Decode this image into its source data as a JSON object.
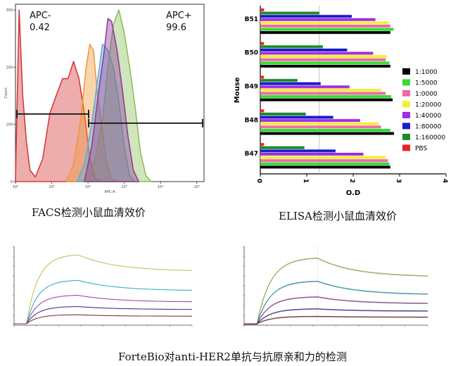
{
  "chart_data": [
    {
      "type": "area",
      "panel": "facs",
      "x_ticks": [
        "10⁰",
        "10¹",
        "10²",
        "10³",
        "10⁴",
        "10⁵"
      ],
      "y_ticks": [
        "0",
        "100",
        "200",
        "300"
      ],
      "xlabel": "APC-A",
      "ylabel": "Count",
      "ylim": [
        0,
        310
      ],
      "gates": [
        {
          "label": "APC-",
          "value": "0.42"
        },
        {
          "label": "APC+",
          "value": "99.6"
        }
      ],
      "series": [
        {
          "color": "#d43c3c",
          "values": [
            [
              0.0,
              2
            ],
            [
              0.1,
              300
            ],
            [
              0.2,
              150
            ],
            [
              0.3,
              70
            ],
            [
              0.4,
              20
            ],
            [
              0.55,
              8
            ],
            [
              0.75,
              40
            ],
            [
              0.95,
              120
            ],
            [
              1.15,
              155
            ],
            [
              1.3,
              180
            ],
            [
              1.45,
              180
            ],
            [
              1.6,
              210
            ],
            [
              1.75,
              180
            ],
            [
              1.9,
              120
            ],
            [
              2.05,
              40
            ],
            [
              2.2,
              5
            ],
            [
              2.4,
              0
            ]
          ]
        },
        {
          "color": "#ee9a3c",
          "values": [
            [
              1.4,
              0
            ],
            [
              1.6,
              30
            ],
            [
              1.8,
              110
            ],
            [
              1.95,
              200
            ],
            [
              2.05,
              240
            ],
            [
              2.15,
              230
            ],
            [
              2.25,
              160
            ],
            [
              2.35,
              110
            ],
            [
              2.5,
              40
            ],
            [
              2.65,
              5
            ],
            [
              2.8,
              0
            ]
          ]
        },
        {
          "color": "#5aaed8",
          "values": [
            [
              1.7,
              0
            ],
            [
              1.9,
              30
            ],
            [
              2.1,
              100
            ],
            [
              2.25,
              170
            ],
            [
              2.4,
              240
            ],
            [
              2.55,
              230
            ],
            [
              2.7,
              200
            ],
            [
              2.85,
              140
            ],
            [
              3.0,
              60
            ],
            [
              3.15,
              10
            ],
            [
              3.3,
              0
            ]
          ]
        },
        {
          "color": "#8dc05c",
          "values": [
            [
              2.0,
              0
            ],
            [
              2.2,
              40
            ],
            [
              2.4,
              110
            ],
            [
              2.55,
              200
            ],
            [
              2.7,
              275
            ],
            [
              2.85,
              300
            ],
            [
              3.0,
              260
            ],
            [
              3.15,
              200
            ],
            [
              3.3,
              130
            ],
            [
              3.45,
              50
            ],
            [
              3.6,
              10
            ],
            [
              3.75,
              0
            ]
          ]
        },
        {
          "color": "#8c3c9c",
          "values": [
            [
              1.9,
              0
            ],
            [
              2.1,
              60
            ],
            [
              2.3,
              160
            ],
            [
              2.45,
              230
            ],
            [
              2.55,
              285
            ],
            [
              2.65,
              280
            ],
            [
              2.8,
              230
            ],
            [
              2.95,
              160
            ],
            [
              3.1,
              80
            ],
            [
              3.25,
              20
            ],
            [
              3.4,
              0
            ]
          ]
        }
      ]
    },
    {
      "type": "bar",
      "panel": "elisa",
      "orientation": "horizontal",
      "categories": [
        "B51",
        "B50",
        "B49",
        "B48",
        "B47"
      ],
      "xlabel": "O.D",
      "ylabel": "Mouse",
      "xlim": [
        0,
        4
      ],
      "x_ticks": [
        "0",
        "1",
        "2",
        "3",
        "4"
      ],
      "series": [
        {
          "name": "1:1000",
          "color": "#000000",
          "values": [
            2.8,
            2.8,
            2.85,
            2.88,
            2.8
          ]
        },
        {
          "name": "1:5000",
          "color": "#33dd33",
          "values": [
            2.87,
            2.78,
            2.82,
            2.8,
            2.78
          ]
        },
        {
          "name": "1:0000",
          "color": "#f06aa8",
          "values": [
            2.8,
            2.7,
            2.7,
            2.6,
            2.75
          ]
        },
        {
          "name": "1:20000",
          "color": "#f4ee3a",
          "values": [
            2.77,
            2.72,
            2.6,
            2.55,
            2.7
          ]
        },
        {
          "name": "1:40000",
          "color": "#a02ee6",
          "values": [
            2.48,
            2.43,
            1.92,
            2.15,
            2.22
          ]
        },
        {
          "name": "1:80000",
          "color": "#1c1ccc",
          "values": [
            1.97,
            1.87,
            1.3,
            1.57,
            1.62
          ]
        },
        {
          "name": "1:160000",
          "color": "#1e8a2c",
          "values": [
            1.27,
            1.35,
            0.8,
            0.98,
            0.95
          ]
        },
        {
          "name": "PBS",
          "color": "#ee2222",
          "values": [
            0.08,
            0.08,
            0.08,
            0.08,
            0.08
          ]
        }
      ]
    },
    {
      "type": "line",
      "panel": "fortebio-left",
      "assoc_end": 0.36,
      "series": [
        {
          "color": "#c8c05c",
          "peak": 0.92,
          "end": 0.7
        },
        {
          "color": "#3ab0c0",
          "peak": 0.58,
          "end": 0.44
        },
        {
          "color": "#a04ca0",
          "peak": 0.38,
          "end": 0.29
        },
        {
          "color": "#3a3aa0",
          "peak": 0.23,
          "end": 0.19
        },
        {
          "color": "#7a3a3a",
          "peak": 0.12,
          "end": 0.1
        }
      ]
    },
    {
      "type": "line",
      "panel": "fortebio-right",
      "assoc_end": 0.4,
      "series": [
        {
          "color": "#c8c05c",
          "peak": 0.88,
          "end": 0.63
        },
        {
          "color": "#3ab0c0",
          "peak": 0.57,
          "end": 0.39
        },
        {
          "color": "#a04ca0",
          "peak": 0.36,
          "end": 0.27
        },
        {
          "color": "#3a3aa0",
          "peak": 0.2,
          "end": 0.17
        },
        {
          "color": "#7a3a3a",
          "peak": 0.1,
          "end": 0.09
        }
      ]
    }
  ],
  "captions": {
    "facs": "FACS检测小鼠血清效价",
    "elisa": "ELISA检测小鼠血清效价",
    "fortebio": "ForteBio对anti-HER2单抗与抗原亲和力的检测"
  }
}
